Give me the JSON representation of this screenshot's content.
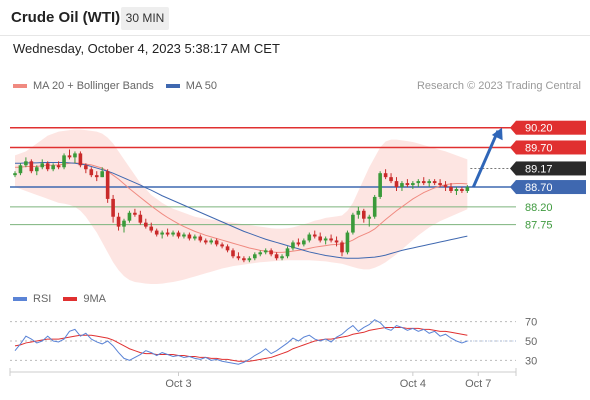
{
  "header": {
    "title": "Crude Oil (WTI)",
    "timeframe": "30 MIN",
    "datetime": "Wednesday, October 4, 2023 5:38:17 AM CET"
  },
  "legend": {
    "ma20_label": "MA 20 + Bollinger Bands",
    "ma50_label": "MA 50",
    "copyright": "Research © 2023 Trading Central",
    "rsi_label": "RSI",
    "rsi_ma_label": "9MA"
  },
  "colors": {
    "up_candle": "#3a9a3a",
    "down_candle": "#c92a2a",
    "ma20": "#f08a80",
    "bollinger_fill": "#fde2df",
    "ma50": "#3f68b0",
    "resistance": "#e03030",
    "support_blue": "#3f68b0",
    "support_green": "#7cb37c",
    "current_price": "#2a2a2a",
    "rsi": "#5b84d6",
    "rsi_ma": "#e03030",
    "forecast_arrow": "#2f66b8"
  },
  "chart_data": {
    "type": "candlestick",
    "x_tick_labels": [
      "Oct 3",
      "Oct 4",
      "Oct 7"
    ],
    "candles": [
      [
        89.0,
        89.1,
        88.95,
        89.05
      ],
      [
        89.05,
        89.3,
        89.0,
        89.25
      ],
      [
        89.25,
        89.45,
        89.2,
        89.35
      ],
      [
        89.35,
        89.4,
        89.05,
        89.1
      ],
      [
        89.1,
        89.25,
        89.0,
        89.2
      ],
      [
        89.2,
        89.4,
        89.15,
        89.3
      ],
      [
        89.3,
        89.35,
        89.1,
        89.15
      ],
      [
        89.15,
        89.3,
        89.1,
        89.25
      ],
      [
        89.25,
        89.35,
        89.15,
        89.2
      ],
      [
        89.2,
        89.55,
        89.15,
        89.5
      ],
      [
        89.5,
        89.65,
        89.4,
        89.45
      ],
      [
        89.45,
        89.6,
        89.3,
        89.55
      ],
      [
        89.55,
        89.6,
        89.2,
        89.25
      ],
      [
        89.25,
        89.3,
        89.05,
        89.15
      ],
      [
        89.15,
        89.2,
        88.95,
        89.0
      ],
      [
        89.0,
        89.1,
        88.85,
        88.95
      ],
      [
        88.95,
        89.2,
        88.95,
        89.1
      ],
      [
        89.1,
        89.15,
        88.3,
        88.4
      ],
      [
        88.4,
        88.5,
        87.8,
        87.95
      ],
      [
        87.95,
        88.05,
        87.6,
        87.7
      ],
      [
        87.7,
        87.9,
        87.55,
        87.85
      ],
      [
        87.85,
        88.1,
        87.8,
        88.05
      ],
      [
        88.05,
        88.15,
        87.95,
        88.0
      ],
      [
        88.0,
        88.1,
        87.75,
        87.8
      ],
      [
        87.8,
        87.9,
        87.65,
        87.7
      ],
      [
        87.7,
        87.8,
        87.55,
        87.6
      ],
      [
        87.6,
        87.65,
        87.45,
        87.5
      ],
      [
        87.5,
        87.6,
        87.4,
        87.55
      ],
      [
        87.55,
        87.65,
        87.45,
        87.5
      ],
      [
        87.5,
        87.6,
        87.45,
        87.55
      ],
      [
        87.55,
        87.6,
        87.4,
        87.45
      ],
      [
        87.45,
        87.55,
        87.4,
        87.5
      ],
      [
        87.5,
        87.55,
        87.35,
        87.4
      ],
      [
        87.4,
        87.5,
        87.35,
        87.45
      ],
      [
        87.45,
        87.5,
        87.3,
        87.35
      ],
      [
        87.35,
        87.4,
        87.25,
        87.3
      ],
      [
        87.3,
        87.4,
        87.25,
        87.35
      ],
      [
        87.35,
        87.4,
        87.2,
        87.25
      ],
      [
        87.25,
        87.3,
        87.15,
        87.2
      ],
      [
        87.2,
        87.25,
        87.05,
        87.1
      ],
      [
        87.1,
        87.15,
        86.9,
        86.95
      ],
      [
        86.95,
        87.05,
        86.85,
        86.9
      ],
      [
        86.9,
        86.95,
        86.8,
        86.85
      ],
      [
        86.85,
        86.95,
        86.8,
        86.9
      ],
      [
        86.9,
        87.05,
        86.85,
        87.0
      ],
      [
        87.0,
        87.1,
        86.95,
        87.05
      ],
      [
        87.05,
        87.15,
        87.0,
        87.1
      ],
      [
        87.1,
        87.15,
        86.95,
        87.0
      ],
      [
        87.0,
        87.05,
        86.85,
        86.9
      ],
      [
        86.9,
        87.0,
        86.85,
        86.95
      ],
      [
        86.95,
        87.2,
        86.9,
        87.15
      ],
      [
        87.15,
        87.35,
        87.1,
        87.3
      ],
      [
        87.3,
        87.4,
        87.2,
        87.25
      ],
      [
        87.25,
        87.4,
        87.2,
        87.35
      ],
      [
        87.35,
        87.55,
        87.3,
        87.5
      ],
      [
        87.5,
        87.6,
        87.4,
        87.45
      ],
      [
        87.45,
        87.55,
        87.3,
        87.35
      ],
      [
        87.35,
        87.45,
        87.25,
        87.4
      ],
      [
        87.4,
        87.5,
        87.3,
        87.35
      ],
      [
        87.35,
        87.45,
        87.2,
        87.3
      ],
      [
        87.3,
        87.35,
        86.95,
        87.05
      ],
      [
        87.05,
        87.6,
        87.0,
        87.55
      ],
      [
        87.55,
        88.05,
        87.5,
        88.0
      ],
      [
        88.0,
        88.2,
        87.9,
        88.1
      ],
      [
        88.1,
        88.15,
        87.8,
        87.9
      ],
      [
        87.9,
        88.0,
        87.7,
        87.95
      ],
      [
        87.95,
        88.5,
        87.9,
        88.45
      ],
      [
        88.45,
        89.1,
        88.4,
        89.05
      ],
      [
        89.05,
        89.15,
        88.9,
        88.95
      ],
      [
        88.95,
        89.05,
        88.8,
        88.85
      ],
      [
        88.85,
        88.95,
        88.6,
        88.7
      ],
      [
        88.7,
        88.85,
        88.6,
        88.8
      ],
      [
        88.8,
        88.9,
        88.7,
        88.75
      ],
      [
        88.75,
        88.85,
        88.65,
        88.8
      ],
      [
        88.8,
        88.9,
        88.7,
        88.85
      ],
      [
        88.85,
        88.95,
        88.75,
        88.8
      ],
      [
        88.8,
        88.9,
        88.7,
        88.85
      ],
      [
        88.85,
        88.9,
        88.75,
        88.8
      ],
      [
        88.8,
        88.9,
        88.7,
        88.75
      ],
      [
        88.75,
        88.85,
        88.6,
        88.7
      ],
      [
        88.7,
        88.8,
        88.55,
        88.6
      ],
      [
        88.6,
        88.7,
        88.5,
        88.65
      ],
      [
        88.65,
        88.7,
        88.55,
        88.6
      ],
      [
        88.6,
        88.75,
        88.55,
        88.7
      ]
    ],
    "ma20": [
      89.2,
      89.2,
      89.22,
      89.22,
      89.22,
      89.24,
      89.25,
      89.25,
      89.26,
      89.28,
      89.3,
      89.31,
      89.3,
      89.28,
      89.26,
      89.22,
      89.18,
      89.1,
      89.0,
      88.9,
      88.78,
      88.66,
      88.55,
      88.44,
      88.33,
      88.22,
      88.12,
      88.02,
      87.93,
      87.85,
      87.77,
      87.7,
      87.64,
      87.58,
      87.53,
      87.48,
      87.44,
      87.4,
      87.36,
      87.32,
      87.28,
      87.24,
      87.2,
      87.16,
      87.13,
      87.1,
      87.08,
      87.06,
      87.05,
      87.05,
      87.06,
      87.08,
      87.1,
      87.12,
      87.15,
      87.18,
      87.2,
      87.22,
      87.24,
      87.25,
      87.26,
      87.3,
      87.36,
      87.44,
      87.5,
      87.56,
      87.64,
      87.76,
      87.88,
      87.99,
      88.1,
      88.2,
      88.3,
      88.4,
      88.48,
      88.56,
      88.62,
      88.68,
      88.72,
      88.76,
      88.78,
      88.79,
      88.79,
      88.78
    ],
    "ma50": [
      89.3,
      89.3,
      89.31,
      89.31,
      89.31,
      89.32,
      89.32,
      89.32,
      89.32,
      89.32,
      89.31,
      89.3,
      89.28,
      89.26,
      89.22,
      89.18,
      89.14,
      89.1,
      89.05,
      88.99,
      88.93,
      88.87,
      88.81,
      88.75,
      88.68,
      88.62,
      88.55,
      88.48,
      88.42,
      88.36,
      88.3,
      88.24,
      88.18,
      88.12,
      88.06,
      88.0,
      87.94,
      87.88,
      87.82,
      87.76,
      87.7,
      87.64,
      87.58,
      87.53,
      87.48,
      87.43,
      87.38,
      87.34,
      87.3,
      87.26,
      87.22,
      87.18,
      87.14,
      87.1,
      87.06,
      87.03,
      87.0,
      86.97,
      86.95,
      86.93,
      86.91,
      86.9,
      86.9,
      86.9,
      86.91,
      86.92,
      86.93,
      86.95,
      86.98,
      87.02,
      87.06,
      87.1,
      87.13,
      87.16,
      87.19,
      87.22,
      87.25,
      87.28,
      87.31,
      87.34,
      87.37,
      87.4,
      87.43,
      87.46
    ],
    "bb_upper": [
      89.5,
      89.55,
      89.6,
      89.7,
      89.8,
      89.9,
      90.0,
      90.05,
      90.1,
      90.12,
      90.14,
      90.15,
      90.15,
      90.14,
      90.12,
      90.1,
      90.05,
      89.95,
      89.8,
      89.6,
      89.4,
      89.2,
      89.0,
      88.8,
      88.65,
      88.5,
      88.4,
      88.3,
      88.22,
      88.15,
      88.1,
      88.05,
      88.0,
      87.95,
      87.92,
      87.9,
      87.88,
      87.86,
      87.84,
      87.82,
      87.8,
      87.78,
      87.76,
      87.74,
      87.72,
      87.7,
      87.68,
      87.66,
      87.65,
      87.65,
      87.66,
      87.68,
      87.72,
      87.76,
      87.8,
      87.85,
      87.88,
      87.92,
      87.94,
      87.96,
      87.98,
      88.1,
      88.3,
      88.6,
      88.9,
      89.2,
      89.45,
      89.7,
      89.85,
      89.9,
      89.9,
      89.88,
      89.86,
      89.84,
      89.8,
      89.76,
      89.72,
      89.68,
      89.64,
      89.6,
      89.55,
      89.5,
      89.45,
      89.4
    ],
    "bb_lower": [
      88.7,
      88.65,
      88.6,
      88.55,
      88.5,
      88.45,
      88.4,
      88.35,
      88.3,
      88.28,
      88.25,
      88.2,
      88.1,
      87.95,
      87.75,
      87.55,
      87.3,
      87.05,
      86.8,
      86.6,
      86.45,
      86.35,
      86.3,
      86.28,
      86.26,
      86.25,
      86.25,
      86.26,
      86.28,
      86.3,
      86.33,
      86.36,
      86.4,
      86.44,
      86.48,
      86.52,
      86.56,
      86.6,
      86.64,
      86.67,
      86.7,
      86.72,
      86.74,
      86.76,
      86.78,
      86.8,
      86.81,
      86.82,
      86.83,
      86.84,
      86.85,
      86.85,
      86.85,
      86.85,
      86.85,
      86.84,
      86.83,
      86.82,
      86.8,
      86.78,
      86.76,
      86.72,
      86.68,
      86.64,
      86.62,
      86.62,
      86.66,
      86.72,
      86.8,
      86.9,
      87.0,
      87.12,
      87.24,
      87.36,
      87.48,
      87.58,
      87.68,
      87.76,
      87.84,
      87.9,
      87.96,
      88.02,
      88.08,
      88.14
    ],
    "forecast": {
      "from": 88.7,
      "to": 90.2
    },
    "levels": [
      {
        "value": 90.2,
        "label": "90.20",
        "kind": "resistance"
      },
      {
        "value": 89.7,
        "label": "89.70",
        "kind": "resistance"
      },
      {
        "value": 88.7,
        "label": "88.70",
        "kind": "pivot"
      },
      {
        "value": 88.2,
        "label": "88.20",
        "kind": "support"
      },
      {
        "value": 87.75,
        "label": "87.75",
        "kind": "support"
      }
    ],
    "current_price": {
      "value": 89.17,
      "label": "89.17"
    },
    "rsi": {
      "y_ticks": [
        30,
        50,
        70
      ],
      "ylim": [
        20,
        80
      ],
      "values": [
        40,
        47,
        55,
        52,
        48,
        50,
        55,
        50,
        49,
        52,
        60,
        62,
        55,
        58,
        52,
        49,
        47,
        50,
        45,
        38,
        32,
        30,
        33,
        36,
        40,
        38,
        35,
        38,
        36,
        34,
        35,
        33,
        34,
        32,
        31,
        33,
        30,
        31,
        29,
        28,
        27,
        26,
        28,
        31,
        35,
        38,
        42,
        37,
        40,
        44,
        48,
        53,
        50,
        54,
        56,
        52,
        50,
        52,
        49,
        54,
        57,
        62,
        66,
        60,
        64,
        67,
        72,
        69,
        63,
        61,
        66,
        64,
        61,
        63,
        60,
        62,
        58,
        60,
        55,
        57,
        53,
        50,
        48,
        50
      ],
      "ma": [
        45,
        46,
        48,
        49,
        50,
        51,
        52,
        52,
        52,
        53,
        54,
        55,
        56,
        56,
        56,
        55,
        54,
        53,
        51,
        48,
        45,
        42,
        40,
        38,
        37,
        37,
        36,
        36,
        36,
        36,
        35,
        35,
        34,
        34,
        33,
        33,
        32,
        32,
        31,
        31,
        30,
        29,
        29,
        29,
        30,
        31,
        32,
        33,
        35,
        37,
        39,
        42,
        44,
        46,
        48,
        50,
        51,
        52,
        52,
        53,
        54,
        55,
        57,
        58,
        59,
        61,
        62,
        63,
        64,
        64,
        64,
        64,
        63,
        63,
        63,
        62,
        62,
        61,
        60,
        60,
        59,
        58,
        57,
        56
      ]
    }
  }
}
